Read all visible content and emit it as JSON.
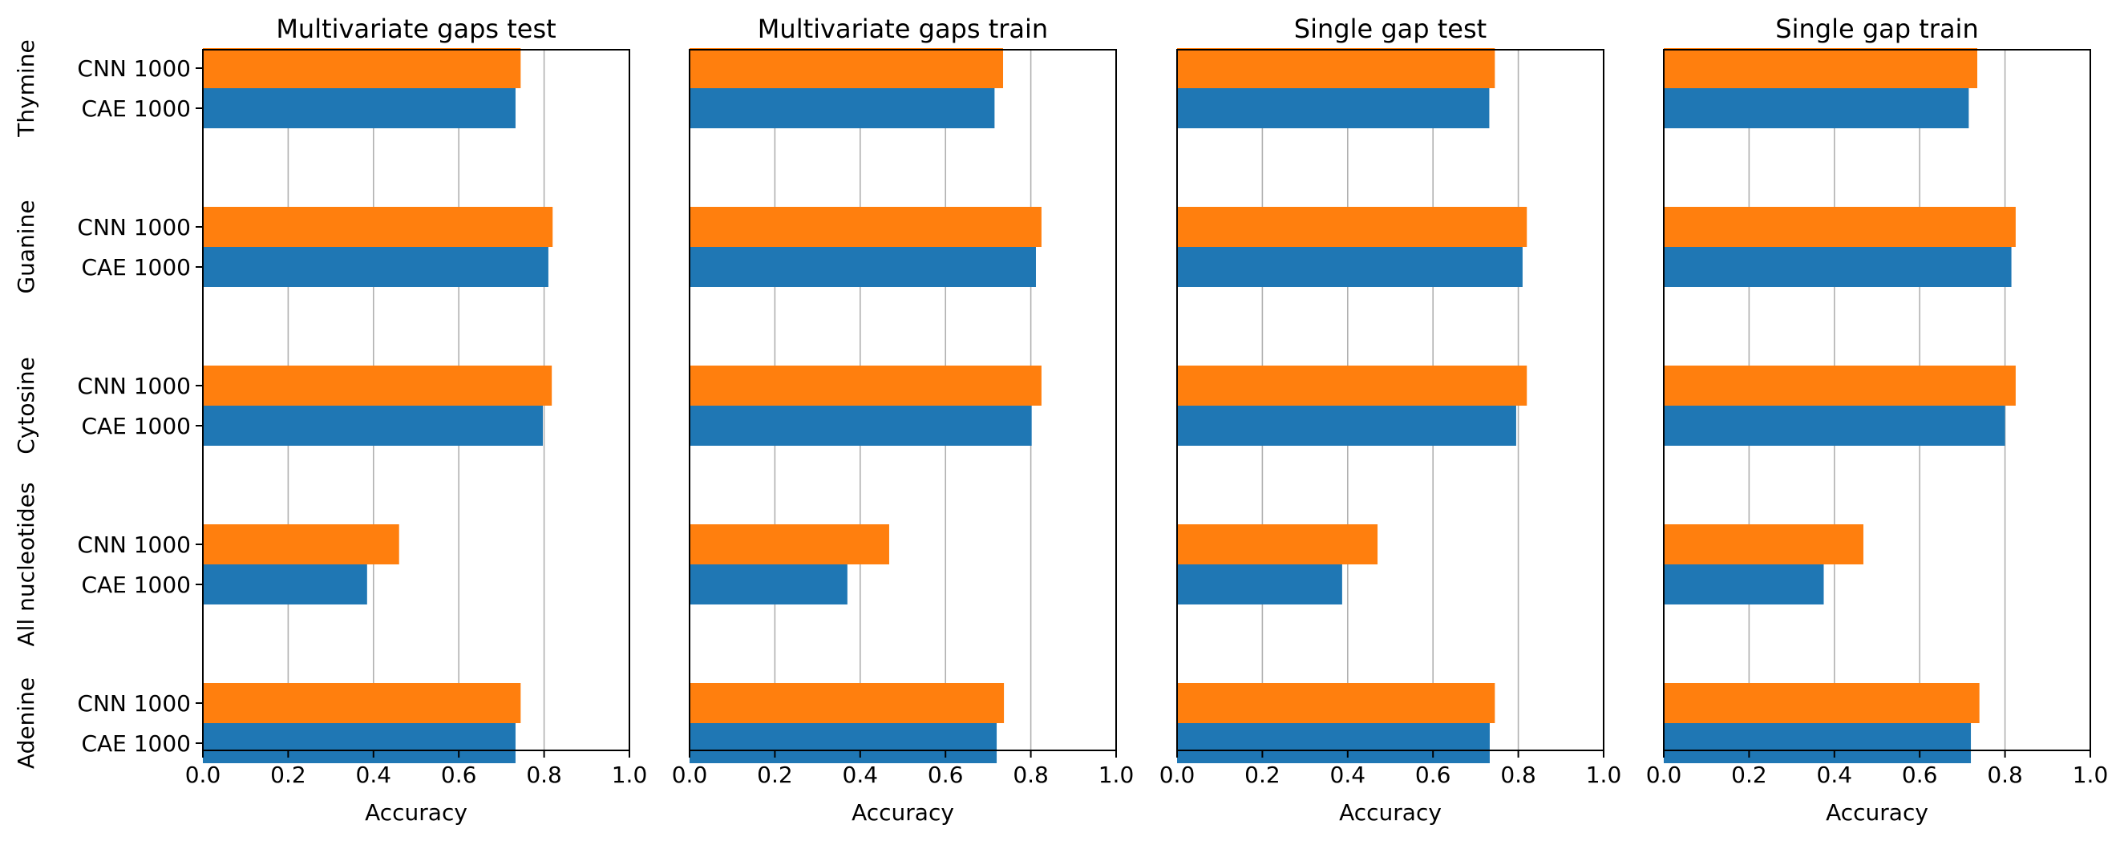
{
  "chart_data": {
    "type": "bar",
    "orientation": "horizontal",
    "grid": "vertical gridlines on x ticks",
    "legend": "none",
    "groups": [
      "Thymine",
      "Guanine",
      "Cytosine",
      "All nucleotides",
      "Adenine"
    ],
    "bar_labels": [
      "CNN 1000",
      "CAE 1000"
    ],
    "colors": {
      "CNN 1000": "#ff7f0e",
      "CAE 1000": "#1f77b4"
    },
    "x_ticks": [
      "0.0",
      "0.2",
      "0.4",
      "0.6",
      "0.8",
      "1.0"
    ],
    "xlim": [
      0,
      1
    ],
    "panels": [
      {
        "title": "Multivariate gaps test",
        "xlabel": "Accuracy",
        "values": {
          "CNN 1000": [
            0.745,
            0.82,
            0.818,
            0.46,
            0.745
          ],
          "CAE 1000": [
            0.733,
            0.81,
            0.797,
            0.385,
            0.733
          ]
        }
      },
      {
        "title": "Multivariate gaps train",
        "xlabel": "Accuracy",
        "values": {
          "CNN 1000": [
            0.735,
            0.825,
            0.825,
            0.468,
            0.737
          ],
          "CAE 1000": [
            0.715,
            0.812,
            0.802,
            0.37,
            0.72
          ]
        }
      },
      {
        "title": "Single gap test",
        "xlabel": "Accuracy",
        "values": {
          "CNN 1000": [
            0.745,
            0.82,
            0.82,
            0.47,
            0.745
          ],
          "CAE 1000": [
            0.732,
            0.81,
            0.795,
            0.387,
            0.733
          ]
        }
      },
      {
        "title": "Single gap train",
        "xlabel": "Accuracy",
        "values": {
          "CNN 1000": [
            0.735,
            0.825,
            0.825,
            0.468,
            0.74
          ],
          "CAE 1000": [
            0.715,
            0.815,
            0.8,
            0.375,
            0.72
          ]
        }
      }
    ]
  }
}
